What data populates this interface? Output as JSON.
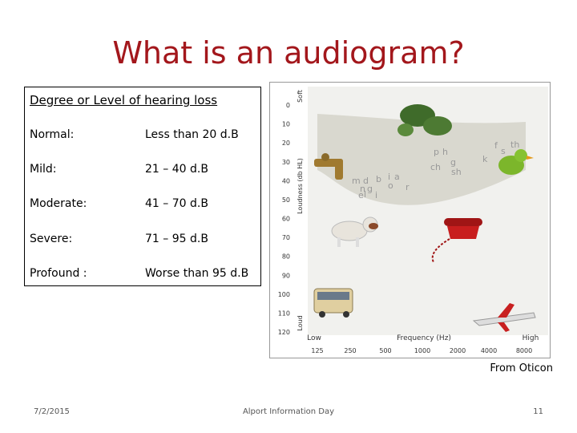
{
  "title": "What is an audiogram?",
  "table": {
    "header": "Degree or Level of hearing loss",
    "rows": [
      [
        "Normal:",
        "Less than 20 d.B"
      ],
      [
        "Mild:",
        "21 – 40 d.B"
      ],
      [
        "Moderate:",
        "41 – 70 d.B"
      ],
      [
        "Severe:",
        "71 – 95 d.B"
      ],
      [
        "Profound :",
        "Worse than 95 d.B"
      ]
    ]
  },
  "audiogram": {
    "soft": "Soft",
    "y_title": "Loudness (db HL)",
    "loud": "Loud",
    "y_labels": [
      0,
      10,
      20,
      30,
      40,
      50,
      60,
      70,
      80,
      90,
      100,
      110,
      120
    ],
    "low": "Low",
    "x_title": "Frequency (Hz)",
    "high": "High",
    "x_labels": [
      125,
      250,
      500,
      1000,
      2000,
      4000,
      8000
    ],
    "phonemes": [
      "m",
      "d",
      "b",
      "n",
      "g",
      "e",
      "l",
      "i",
      "i",
      "a",
      "o",
      "r",
      "p",
      "h",
      "ch",
      "g",
      "sh",
      "k",
      "f",
      "s",
      "th"
    ]
  },
  "credit": "From Oticon",
  "footer": {
    "date": "7/2/2015",
    "event": "Alport Information Day",
    "page": "11"
  }
}
